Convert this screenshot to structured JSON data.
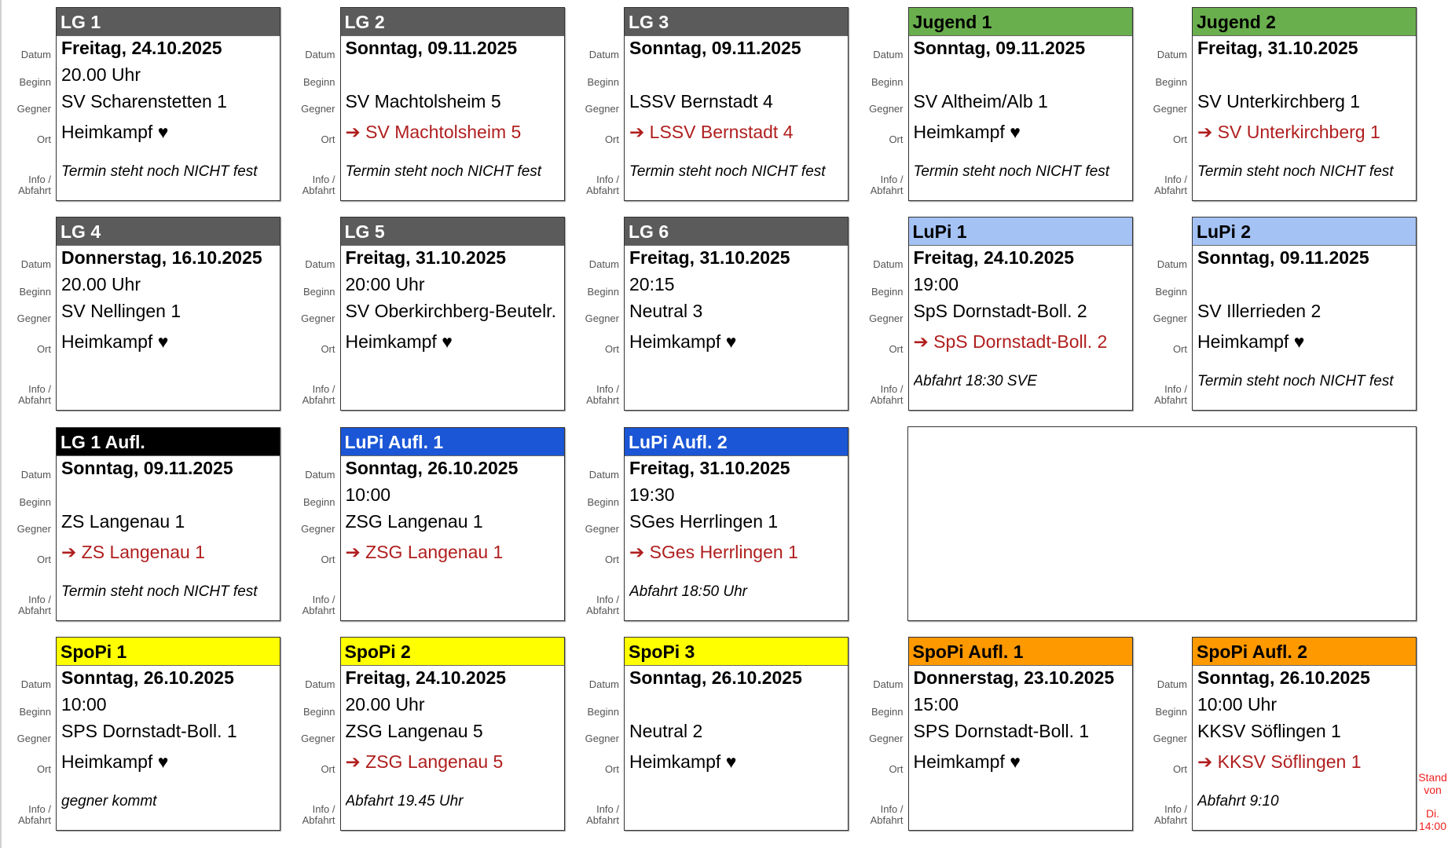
{
  "labels": {
    "datum": "Datum",
    "beginn": "Beginn",
    "gegner": "Gegner",
    "ort": "Ort",
    "info1": "Info /",
    "info2": "Abfahrt"
  },
  "colors": {
    "gray": "#5b5b5b",
    "green": "#6aaf4e",
    "lightblue": "#a4c2f4",
    "black": "#000000",
    "blue": "#1a56d6",
    "yellow": "#ffff00",
    "orange": "#ff9900",
    "away": "#b01e1e"
  },
  "cards": [
    {
      "title": "LG 1",
      "color": "gray",
      "date": "Freitag, 24.10.2025",
      "time": "20.00 Uhr",
      "opponent": "SV Scharenstetten 1",
      "location": "Heimkampf ♥",
      "away": false,
      "info": "Termin steht noch NICHT fest"
    },
    {
      "title": "LG 2",
      "color": "gray",
      "date": "Sonntag, 09.11.2025",
      "time": "",
      "opponent": "SV Machtolsheim 5",
      "location": "➔ SV Machtolsheim 5",
      "away": true,
      "info": "Termin steht noch NICHT fest"
    },
    {
      "title": "LG 3",
      "color": "gray",
      "date": "Sonntag, 09.11.2025",
      "time": "",
      "opponent": "LSSV Bernstadt 4",
      "location": "➔ LSSV Bernstadt 4",
      "away": true,
      "info": "Termin steht noch NICHT fest"
    },
    {
      "title": "Jugend 1",
      "color": "green",
      "date": "Sonntag, 09.11.2025",
      "time": "",
      "opponent": "SV Altheim/Alb 1",
      "location": "Heimkampf ♥",
      "away": false,
      "info": "Termin steht noch NICHT fest"
    },
    {
      "title": "Jugend 2",
      "color": "green",
      "date": "Freitag, 31.10.2025",
      "time": "",
      "opponent": "SV Unterkirchberg 1",
      "location": "➔ SV Unterkirchberg 1",
      "away": true,
      "info": "Termin steht noch NICHT fest"
    },
    {
      "title": "LG 4",
      "color": "gray",
      "date": "Donnerstag, 16.10.2025",
      "time": "20.00 Uhr",
      "opponent": "SV Nellingen 1",
      "location": "Heimkampf ♥",
      "away": false,
      "info": ""
    },
    {
      "title": "LG 5",
      "color": "gray",
      "date": "Freitag, 31.10.2025",
      "time": "20:00 Uhr",
      "opponent": "SV Oberkirchberg-Beutelr.",
      "location": "Heimkampf ♥",
      "away": false,
      "info": ""
    },
    {
      "title": "LG 6",
      "color": "gray",
      "date": "Freitag, 31.10.2025",
      "time": "20:15",
      "opponent": "Neutral 3",
      "location": "Heimkampf ♥",
      "away": false,
      "info": ""
    },
    {
      "title": "LuPi 1",
      "color": "lightblue",
      "date": "Freitag, 24.10.2025",
      "time": "19:00",
      "opponent": "SpS Dornstadt-Boll. 2",
      "location": "➔ SpS Dornstadt-Boll. 2",
      "away": true,
      "info": "Abfahrt 18:30 SVE"
    },
    {
      "title": "LuPi 2",
      "color": "lightblue",
      "date": "Sonntag, 09.11.2025",
      "time": "",
      "opponent": "SV Illerrieden 2",
      "location": "Heimkampf ♥",
      "away": false,
      "info": "Termin steht noch NICHT fest"
    },
    {
      "title": "LG 1 Aufl.",
      "color": "black",
      "date": "Sonntag, 09.11.2025",
      "time": "",
      "opponent": "ZS Langenau 1",
      "location": "➔ ZS Langenau 1",
      "away": true,
      "info": "Termin steht noch NICHT fest"
    },
    {
      "title": "LuPi Aufl. 1",
      "color": "blue",
      "date": "Sonntag, 26.10.2025",
      "time": "10:00",
      "opponent": "ZSG Langenau 1",
      "location": "➔ ZSG Langenau 1",
      "away": true,
      "info": ""
    },
    {
      "title": "LuPi Aufl. 2",
      "color": "blue",
      "date": "Freitag, 31.10.2025",
      "time": "19:30",
      "opponent": "SGes Herrlingen 1",
      "location": "➔ SGes Herrlingen 1",
      "away": true,
      "info": "Abfahrt 18:50 Uhr"
    },
    {
      "title": "SpoPi 1",
      "color": "yellow",
      "date": "Sonntag, 26.10.2025",
      "time": "10:00",
      "opponent": "SPS Dornstadt-Boll. 1",
      "location": "Heimkampf ♥",
      "away": false,
      "info": "gegner kommt"
    },
    {
      "title": "SpoPi 2",
      "color": "yellow",
      "date": "Freitag, 24.10.2025",
      "time": "20.00 Uhr",
      "opponent": "ZSG Langenau 5",
      "location": "➔ ZSG Langenau 5",
      "away": true,
      "info": "Abfahrt 19.45 Uhr"
    },
    {
      "title": "SpoPi 3",
      "color": "yellow",
      "date": "Sonntag, 26.10.2025",
      "time": "",
      "opponent": "Neutral 2",
      "location": "Heimkampf ♥",
      "away": false,
      "info": ""
    },
    {
      "title": "SpoPi Aufl. 1",
      "color": "orange",
      "date": "Donnerstag, 23.10.2025",
      "time": "15:00",
      "opponent": "SPS Dornstadt-Boll. 1",
      "location": "Heimkampf ♥",
      "away": false,
      "info": ""
    },
    {
      "title": "SpoPi Aufl. 2",
      "color": "orange",
      "date": "Sonntag, 26.10.2025",
      "time": "10:00 Uhr",
      "opponent": "KKSV Söflingen 1",
      "location": "➔ KKSV Söflingen 1",
      "away": true,
      "info": "Abfahrt 9:10"
    }
  ],
  "stand": {
    "line1": "Stand",
    "line2": "von",
    "line3": "Di.",
    "line4": "14:00"
  }
}
